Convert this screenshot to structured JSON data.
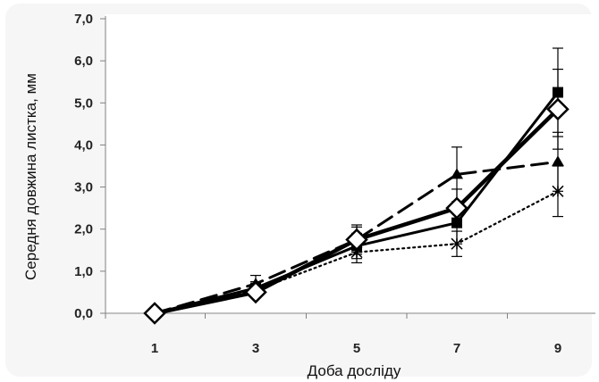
{
  "chart_data": {
    "type": "line",
    "xlabel": "Доба досліду",
    "ylabel": "Середня довжина листка, мм",
    "categories": [
      "1",
      "3",
      "5",
      "7",
      "9"
    ],
    "ylim": [
      0,
      7
    ],
    "yticks": [
      "0,0",
      "1,0",
      "2,0",
      "3,0",
      "4,0",
      "5,0",
      "6,0",
      "7,0"
    ],
    "grid": false,
    "series": [
      {
        "marker": "square",
        "style": "solid",
        "width": 3,
        "color": "#000000",
        "values": [
          0.0,
          0.6,
          1.6,
          2.15,
          5.25
        ],
        "errors": [
          0.05,
          0.15,
          0.3,
          0.5,
          1.05
        ]
      },
      {
        "marker": "triangle",
        "style": "dashed",
        "width": 3,
        "color": "#000000",
        "values": [
          0.0,
          0.7,
          1.75,
          3.3,
          3.6
        ],
        "errors": [
          0.05,
          0.2,
          0.35,
          0.65,
          0.7
        ]
      },
      {
        "marker": "asterisk",
        "style": "dotted",
        "width": 2.2,
        "color": "#000000",
        "values": [
          0.0,
          0.55,
          1.45,
          1.65,
          2.9
        ],
        "errors": [
          0.05,
          0.1,
          0.25,
          0.3,
          0.6
        ]
      },
      {
        "marker": "diamond",
        "style": "solid",
        "width": 4.5,
        "color": "#000000",
        "values": [
          0.0,
          0.5,
          1.75,
          2.5,
          4.85
        ],
        "errors": [
          0.05,
          0.1,
          0.3,
          0.45,
          0.95
        ]
      }
    ]
  }
}
